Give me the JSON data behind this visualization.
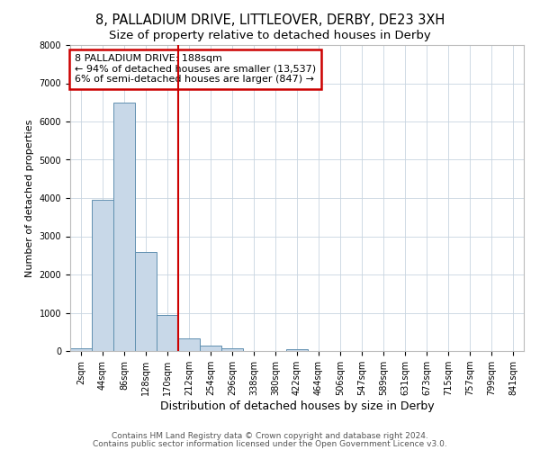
{
  "title1": "8, PALLADIUM DRIVE, LITTLEOVER, DERBY, DE23 3XH",
  "title2": "Size of property relative to detached houses in Derby",
  "xlabel": "Distribution of detached houses by size in Derby",
  "ylabel": "Number of detached properties",
  "bin_labels": [
    "2sqm",
    "44sqm",
    "86sqm",
    "128sqm",
    "170sqm",
    "212sqm",
    "254sqm",
    "296sqm",
    "338sqm",
    "380sqm",
    "422sqm",
    "464sqm",
    "506sqm",
    "547sqm",
    "589sqm",
    "631sqm",
    "673sqm",
    "715sqm",
    "757sqm",
    "799sqm",
    "841sqm"
  ],
  "bar_heights": [
    75,
    3950,
    6500,
    2600,
    950,
    320,
    140,
    75,
    0,
    0,
    55,
    0,
    0,
    0,
    0,
    0,
    0,
    0,
    0,
    0,
    0
  ],
  "bar_color": "#c8d8e8",
  "bar_edge_color": "#6090b0",
  "vline_color": "#cc0000",
  "annotation_text": "8 PALLADIUM DRIVE: 188sqm\n← 94% of detached houses are smaller (13,537)\n6% of semi-detached houses are larger (847) →",
  "annotation_box_color": "#cc0000",
  "ylim": [
    0,
    8000
  ],
  "yticks": [
    0,
    1000,
    2000,
    3000,
    4000,
    5000,
    6000,
    7000,
    8000
  ],
  "footer1": "Contains HM Land Registry data © Crown copyright and database right 2024.",
  "footer2": "Contains public sector information licensed under the Open Government Licence v3.0.",
  "bg_color": "#ffffff",
  "grid_color": "#c8d4e0",
  "title1_fontsize": 10.5,
  "title2_fontsize": 9.5,
  "xlabel_fontsize": 9,
  "ylabel_fontsize": 8,
  "tick_fontsize": 7,
  "footer_fontsize": 6.5,
  "annot_fontsize": 8
}
